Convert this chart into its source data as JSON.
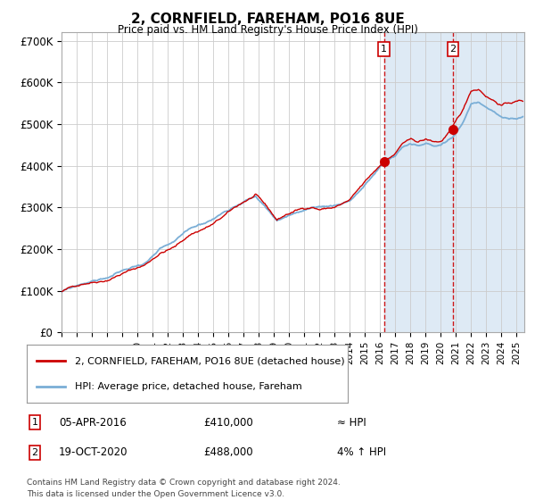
{
  "title": "2, CORNFIELD, FAREHAM, PO16 8UE",
  "subtitle": "Price paid vs. HM Land Registry's House Price Index (HPI)",
  "ylabel_ticks": [
    "£0",
    "£100K",
    "£200K",
    "£300K",
    "£400K",
    "£500K",
    "£600K",
    "£700K"
  ],
  "ylim": [
    0,
    720000
  ],
  "yticks": [
    0,
    100000,
    200000,
    300000,
    400000,
    500000,
    600000,
    700000
  ],
  "purchase1": {
    "date_num": 2016.26,
    "price": 410000,
    "label": "1",
    "date_str": "05-APR-2016",
    "note": "≈ HPI"
  },
  "purchase2": {
    "date_num": 2020.8,
    "price": 488000,
    "label": "2",
    "date_str": "19-OCT-2020",
    "note": "4% ↑ HPI"
  },
  "line1_color": "#cc0000",
  "line2_color": "#7aaed6",
  "shade_color": "#deeaf5",
  "grid_color": "#cccccc",
  "background_color": "#ffffff",
  "legend_line1": "2, CORNFIELD, FAREHAM, PO16 8UE (detached house)",
  "legend_line2": "HPI: Average price, detached house, Fareham",
  "footnote1": "Contains HM Land Registry data © Crown copyright and database right 2024.",
  "footnote2": "This data is licensed under the Open Government Licence v3.0.",
  "xlim_start": 1995.0,
  "xlim_end": 2025.5
}
